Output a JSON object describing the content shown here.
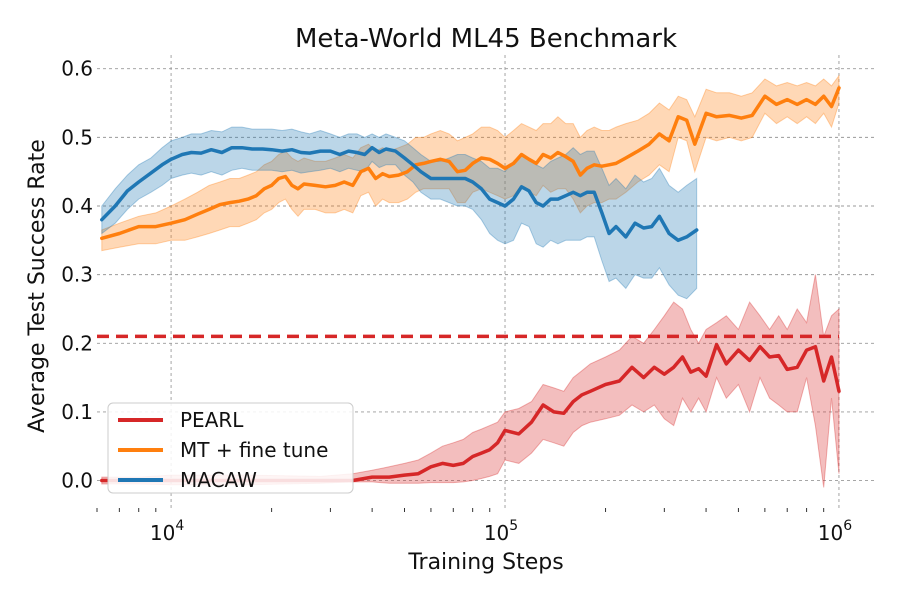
{
  "chart_data": {
    "type": "line",
    "title": "Meta-World ML45 Benchmark",
    "xlabel": "Training Steps",
    "ylabel": "Average Test Success Rate",
    "x_scale": "log",
    "xlim": [
      6000,
      1300000
    ],
    "ylim": [
      -0.04,
      0.62
    ],
    "grid": true,
    "x_ticks": [
      {
        "value": 10000,
        "base": "10",
        "exp": "4"
      },
      {
        "value": 100000,
        "base": "10",
        "exp": "5"
      },
      {
        "value": 1000000,
        "base": "10",
        "exp": "6"
      }
    ],
    "y_ticks": [
      {
        "value": 0.0,
        "label": "0.0"
      },
      {
        "value": 0.1,
        "label": "0.1"
      },
      {
        "value": 0.2,
        "label": "0.2"
      },
      {
        "value": 0.3,
        "label": "0.3"
      },
      {
        "value": 0.4,
        "label": "0.4"
      },
      {
        "value": 0.5,
        "label": "0.5"
      },
      {
        "value": 0.6,
        "label": "0.6"
      }
    ],
    "legend_position": "lower-left",
    "series": [
      {
        "name": "PEARL",
        "color": "#d62728",
        "x": [
          6200,
          8000,
          10000,
          13000,
          17000,
          22000,
          28000,
          35000,
          40000,
          45000,
          50000,
          55000,
          60000,
          65000,
          70000,
          75000,
          80000,
          85000,
          90000,
          95000,
          100000,
          110000,
          120000,
          130000,
          140000,
          150000,
          160000,
          170000,
          180000,
          200000,
          220000,
          240000,
          260000,
          280000,
          300000,
          320000,
          340000,
          360000,
          380000,
          400000,
          430000,
          460000,
          500000,
          540000,
          580000,
          620000,
          660000,
          700000,
          750000,
          800000,
          850000,
          900000,
          950000,
          1000000
        ],
        "values": [
          0.0,
          0.0,
          0.0,
          0.0,
          0.0,
          0.0,
          0.0,
          0.0,
          0.005,
          0.005,
          0.008,
          0.01,
          0.02,
          0.025,
          0.022,
          0.025,
          0.035,
          0.04,
          0.045,
          0.055,
          0.073,
          0.068,
          0.085,
          0.11,
          0.1,
          0.098,
          0.115,
          0.125,
          0.13,
          0.14,
          0.145,
          0.165,
          0.15,
          0.165,
          0.155,
          0.165,
          0.18,
          0.158,
          0.163,
          0.152,
          0.198,
          0.17,
          0.19,
          0.175,
          0.195,
          0.18,
          0.182,
          0.162,
          0.165,
          0.19,
          0.195,
          0.145,
          0.18,
          0.13
        ],
        "upper": [
          0.005,
          0.005,
          0.008,
          0.008,
          0.008,
          0.007,
          0.006,
          0.01,
          0.015,
          0.02,
          0.025,
          0.03,
          0.04,
          0.05,
          0.055,
          0.06,
          0.07,
          0.075,
          0.08,
          0.085,
          0.1,
          0.105,
          0.115,
          0.14,
          0.135,
          0.13,
          0.15,
          0.16,
          0.17,
          0.18,
          0.19,
          0.21,
          0.2,
          0.22,
          0.24,
          0.26,
          0.25,
          0.22,
          0.2,
          0.22,
          0.23,
          0.24,
          0.22,
          0.26,
          0.24,
          0.22,
          0.24,
          0.22,
          0.25,
          0.23,
          0.3,
          0.21,
          0.24,
          0.25
        ],
        "lower": [
          -0.005,
          -0.005,
          -0.006,
          -0.006,
          -0.006,
          -0.005,
          -0.004,
          -0.002,
          -0.002,
          -0.004,
          -0.004,
          -0.004,
          -0.003,
          -0.003,
          -0.003,
          -0.002,
          0.0,
          0.003,
          0.006,
          0.01,
          0.03,
          0.025,
          0.04,
          0.06,
          0.055,
          0.05,
          0.07,
          0.08,
          0.085,
          0.09,
          0.095,
          0.11,
          0.1,
          0.11,
          0.09,
          0.08,
          0.12,
          0.1,
          0.12,
          0.1,
          0.15,
          0.12,
          0.14,
          0.1,
          0.15,
          0.12,
          0.11,
          0.1,
          0.1,
          0.15,
          0.08,
          -0.01,
          0.12,
          0.01
        ],
        "reference": 0.21
      },
      {
        "name": "MT + fine tune",
        "color": "#ff7f0e",
        "x": [
          6200,
          7000,
          8000,
          9000,
          10000,
          11000,
          12000,
          13000,
          14000,
          15000,
          16000,
          17000,
          18000,
          19000,
          20000,
          21000,
          22000,
          23000,
          24000,
          25000,
          27000,
          29000,
          31000,
          33000,
          35000,
          37000,
          39000,
          41000,
          43000,
          45000,
          48000,
          51000,
          54000,
          57000,
          60000,
          64000,
          68000,
          72000,
          76000,
          80000,
          85000,
          90000,
          95000,
          100000,
          106000,
          112000,
          118000,
          124000,
          130000,
          137000,
          144000,
          152000,
          160000,
          168000,
          176000,
          185000,
          195000,
          205000,
          215000,
          230000,
          250000,
          270000,
          290000,
          310000,
          330000,
          350000,
          370000,
          400000,
          430000,
          470000,
          510000,
          550000,
          600000,
          650000,
          700000,
          750000,
          800000,
          850000,
          900000,
          950000,
          1000000
        ],
        "values": [
          0.353,
          0.36,
          0.37,
          0.37,
          0.375,
          0.38,
          0.388,
          0.395,
          0.402,
          0.405,
          0.407,
          0.41,
          0.415,
          0.425,
          0.43,
          0.44,
          0.443,
          0.43,
          0.425,
          0.432,
          0.43,
          0.428,
          0.43,
          0.435,
          0.43,
          0.45,
          0.455,
          0.44,
          0.447,
          0.443,
          0.445,
          0.45,
          0.46,
          0.462,
          0.465,
          0.468,
          0.465,
          0.45,
          0.452,
          0.462,
          0.47,
          0.468,
          0.462,
          0.455,
          0.462,
          0.475,
          0.468,
          0.462,
          0.475,
          0.47,
          0.478,
          0.472,
          0.465,
          0.445,
          0.455,
          0.46,
          0.458,
          0.46,
          0.462,
          0.47,
          0.48,
          0.49,
          0.505,
          0.495,
          0.53,
          0.525,
          0.49,
          0.535,
          0.53,
          0.532,
          0.528,
          0.532,
          0.56,
          0.548,
          0.555,
          0.548,
          0.555,
          0.548,
          0.56,
          0.545,
          0.572
        ],
        "upper": [
          0.365,
          0.375,
          0.385,
          0.39,
          0.4,
          0.41,
          0.42,
          0.43,
          0.435,
          0.44,
          0.44,
          0.445,
          0.45,
          0.46,
          0.465,
          0.475,
          0.48,
          0.47,
          0.465,
          0.47,
          0.465,
          0.465,
          0.47,
          0.475,
          0.47,
          0.485,
          0.49,
          0.48,
          0.485,
          0.48,
          0.485,
          0.49,
          0.5,
          0.5,
          0.505,
          0.51,
          0.505,
          0.495,
          0.5,
          0.505,
          0.515,
          0.515,
          0.51,
          0.5,
          0.51,
          0.52,
          0.515,
          0.51,
          0.52,
          0.52,
          0.53,
          0.52,
          0.52,
          0.5,
          0.51,
          0.515,
          0.51,
          0.51,
          0.515,
          0.52,
          0.525,
          0.535,
          0.55,
          0.54,
          0.56,
          0.555,
          0.53,
          0.57,
          0.565,
          0.565,
          0.56,
          0.565,
          0.585,
          0.575,
          0.58,
          0.575,
          0.58,
          0.575,
          0.585,
          0.575,
          0.59
        ],
        "lower": [
          0.335,
          0.34,
          0.345,
          0.345,
          0.35,
          0.35,
          0.355,
          0.36,
          0.365,
          0.37,
          0.37,
          0.375,
          0.38,
          0.39,
          0.395,
          0.405,
          0.41,
          0.395,
          0.385,
          0.395,
          0.395,
          0.39,
          0.39,
          0.395,
          0.39,
          0.415,
          0.42,
          0.4,
          0.41,
          0.405,
          0.405,
          0.41,
          0.42,
          0.425,
          0.425,
          0.425,
          0.425,
          0.405,
          0.405,
          0.42,
          0.425,
          0.42,
          0.415,
          0.41,
          0.415,
          0.43,
          0.42,
          0.415,
          0.43,
          0.42,
          0.425,
          0.425,
          0.41,
          0.39,
          0.4,
          0.405,
          0.405,
          0.41,
          0.41,
          0.42,
          0.435,
          0.445,
          0.46,
          0.45,
          0.5,
          0.495,
          0.45,
          0.5,
          0.495,
          0.5,
          0.495,
          0.5,
          0.535,
          0.52,
          0.53,
          0.52,
          0.53,
          0.52,
          0.535,
          0.515,
          0.55
        ]
      },
      {
        "name": "MACAW",
        "color": "#1f77b4",
        "x": [
          6200,
          6800,
          7400,
          8000,
          8700,
          9400,
          10000,
          10800,
          11500,
          12300,
          13200,
          14200,
          15200,
          16300,
          17500,
          18800,
          20000,
          21500,
          23000,
          24500,
          26000,
          28000,
          30000,
          32000,
          34000,
          36000,
          38000,
          40000,
          42000,
          44000,
          47000,
          50000,
          53000,
          56000,
          60000,
          64000,
          68000,
          72000,
          76000,
          80000,
          85000,
          90000,
          95000,
          100000,
          106000,
          112000,
          118000,
          124000,
          130000,
          137000,
          144000,
          152000,
          160000,
          168000,
          176000,
          185000,
          195000,
          205000,
          215000,
          230000,
          245000,
          260000,
          275000,
          290000,
          310000,
          330000,
          350000,
          375000
        ],
        "values": [
          0.38,
          0.4,
          0.422,
          0.435,
          0.448,
          0.46,
          0.468,
          0.475,
          0.478,
          0.477,
          0.482,
          0.478,
          0.485,
          0.485,
          0.483,
          0.483,
          0.482,
          0.48,
          0.482,
          0.478,
          0.477,
          0.48,
          0.48,
          0.475,
          0.48,
          0.478,
          0.475,
          0.485,
          0.478,
          0.483,
          0.48,
          0.47,
          0.46,
          0.45,
          0.44,
          0.44,
          0.44,
          0.44,
          0.44,
          0.435,
          0.425,
          0.41,
          0.405,
          0.4,
          0.41,
          0.428,
          0.422,
          0.405,
          0.4,
          0.41,
          0.41,
          0.415,
          0.42,
          0.415,
          0.42,
          0.42,
          0.39,
          0.36,
          0.37,
          0.355,
          0.375,
          0.368,
          0.37,
          0.385,
          0.36,
          0.35,
          0.355,
          0.365
        ],
        "upper": [
          0.4,
          0.425,
          0.445,
          0.46,
          0.47,
          0.485,
          0.495,
          0.5,
          0.505,
          0.505,
          0.51,
          0.508,
          0.515,
          0.515,
          0.512,
          0.512,
          0.512,
          0.51,
          0.512,
          0.508,
          0.505,
          0.51,
          0.505,
          0.5,
          0.505,
          0.505,
          0.5,
          0.505,
          0.5,
          0.505,
          0.5,
          0.495,
          0.485,
          0.475,
          0.465,
          0.465,
          0.47,
          0.475,
          0.475,
          0.47,
          0.465,
          0.455,
          0.455,
          0.45,
          0.465,
          0.475,
          0.47,
          0.46,
          0.455,
          0.465,
          0.47,
          0.475,
          0.485,
          0.475,
          0.48,
          0.48,
          0.455,
          0.43,
          0.44,
          0.425,
          0.445,
          0.435,
          0.44,
          0.455,
          0.43,
          0.42,
          0.43,
          0.44
        ],
        "lower": [
          0.36,
          0.375,
          0.395,
          0.41,
          0.42,
          0.43,
          0.44,
          0.445,
          0.448,
          0.445,
          0.45,
          0.445,
          0.452,
          0.455,
          0.452,
          0.452,
          0.452,
          0.45,
          0.452,
          0.448,
          0.45,
          0.452,
          0.455,
          0.45,
          0.455,
          0.452,
          0.45,
          0.465,
          0.456,
          0.46,
          0.46,
          0.445,
          0.435,
          0.42,
          0.41,
          0.41,
          0.405,
          0.4,
          0.4,
          0.395,
          0.38,
          0.36,
          0.35,
          0.345,
          0.35,
          0.375,
          0.37,
          0.345,
          0.34,
          0.35,
          0.345,
          0.35,
          0.35,
          0.35,
          0.355,
          0.355,
          0.32,
          0.29,
          0.295,
          0.28,
          0.3,
          0.295,
          0.295,
          0.31,
          0.285,
          0.27,
          0.265,
          0.28
        ]
      }
    ]
  }
}
